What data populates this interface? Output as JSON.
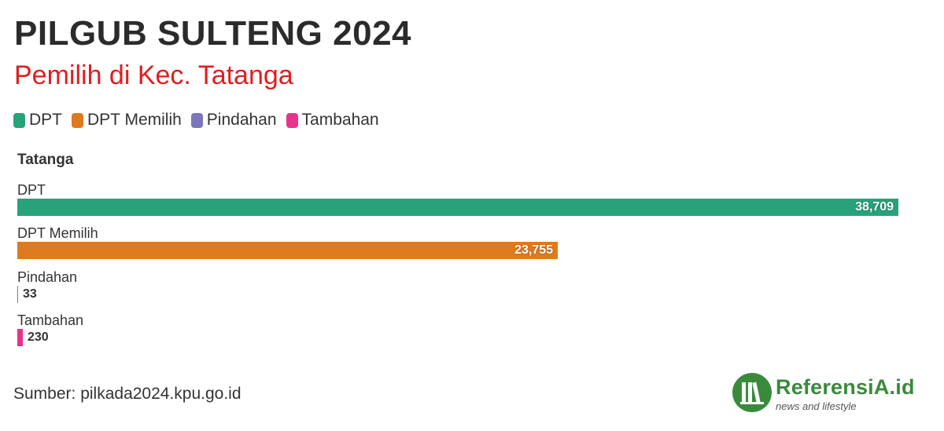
{
  "title": "PILGUB SULTENG 2024",
  "subtitle": "Pemilih di Kec. Tatanga",
  "legend": [
    {
      "label": "DPT",
      "color": "#27a27a"
    },
    {
      "label": "DPT Memilih",
      "color": "#e07a1f"
    },
    {
      "label": "Pindahan",
      "color": "#7b76bd"
    },
    {
      "label": "Tambahan",
      "color": "#e7348b"
    }
  ],
  "chart_data": {
    "type": "bar",
    "orientation": "horizontal",
    "group": "Tatanga",
    "categories": [
      "DPT",
      "DPT Memilih",
      "Pindahan",
      "Tambahan"
    ],
    "values": [
      38709,
      23755,
      33,
      230
    ],
    "value_labels": [
      "38,709",
      "23,755",
      "33",
      "230"
    ],
    "colors": [
      "#27a27a",
      "#e07a1f",
      "#7b76bd",
      "#e7348b"
    ],
    "xlim": [
      0,
      38709
    ],
    "grid": false,
    "legend_position": "top-left"
  },
  "source": "Sumber: pilkada2024.kpu.go.id",
  "logo": {
    "name": "ReferensiA.id",
    "tagline": "news and lifestyle",
    "color": "#3a8a3c"
  }
}
